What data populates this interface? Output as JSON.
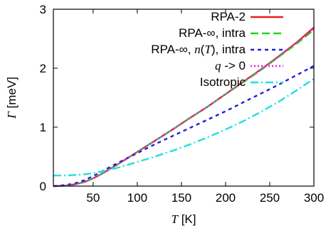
{
  "chart_data": {
    "type": "line",
    "title": "",
    "xlabel_var": "T",
    "xlabel_unit": "[K]",
    "ylabel_var": "Γ",
    "ylabel_unit": "[meV]",
    "xlim": [
      5,
      300
    ],
    "ylim": [
      0,
      3
    ],
    "xticks": [
      50,
      100,
      150,
      200,
      250,
      300
    ],
    "yticks": [
      0,
      1,
      2,
      3
    ],
    "legend_position": "top-right",
    "grid": false,
    "series": [
      {
        "name": "RPA-2",
        "legend_parts": [
          "RPA-2"
        ],
        "color": "#e8201c",
        "style": "solid",
        "x": [
          5,
          20,
          30,
          40,
          50,
          60,
          70,
          80,
          100,
          120,
          140,
          160,
          180,
          200,
          220,
          240,
          260,
          280,
          300
        ],
        "y": [
          0.0,
          0.01,
          0.03,
          0.07,
          0.13,
          0.21,
          0.3,
          0.39,
          0.58,
          0.77,
          0.96,
          1.16,
          1.35,
          1.56,
          1.77,
          1.98,
          2.2,
          2.43,
          2.69
        ]
      },
      {
        "name": "RPA-∞, intra",
        "legend_parts": [
          "RPA-∞, intra"
        ],
        "color": "#21d521",
        "style": "dash",
        "x": [
          5,
          20,
          30,
          40,
          50,
          60,
          70,
          80,
          100,
          120,
          140,
          160,
          180,
          200,
          220,
          240,
          260,
          280,
          300
        ],
        "y": [
          0.0,
          0.01,
          0.03,
          0.07,
          0.13,
          0.21,
          0.3,
          0.39,
          0.58,
          0.77,
          0.96,
          1.16,
          1.35,
          1.56,
          1.76,
          1.97,
          2.19,
          2.41,
          2.65
        ]
      },
      {
        "name": "RPA-∞, n(T), intra",
        "legend_parts": [
          "RPA-∞, ",
          "n",
          "(",
          "T",
          "), intra"
        ],
        "color": "#1f1fd6",
        "style": "shortdash",
        "x": [
          5,
          20,
          30,
          40,
          50,
          60,
          70,
          80,
          100,
          120,
          140,
          160,
          180,
          200,
          220,
          240,
          260,
          280,
          300
        ],
        "y": [
          0.0,
          0.02,
          0.05,
          0.1,
          0.17,
          0.25,
          0.33,
          0.41,
          0.56,
          0.71,
          0.85,
          0.99,
          1.13,
          1.27,
          1.42,
          1.57,
          1.72,
          1.88,
          2.04
        ]
      },
      {
        "name": "q -> 0",
        "legend_parts": [
          "q",
          " -> 0"
        ],
        "color": "#e61ee6",
        "style": "dot",
        "x": [
          5,
          20,
          30,
          40,
          50,
          60,
          70,
          80,
          100,
          120,
          140,
          160,
          180,
          200,
          220,
          240,
          260,
          280,
          300
        ],
        "y": [
          0.0,
          0.01,
          0.03,
          0.07,
          0.13,
          0.21,
          0.3,
          0.39,
          0.58,
          0.77,
          0.96,
          1.16,
          1.35,
          1.56,
          1.77,
          1.98,
          2.2,
          2.43,
          2.67
        ]
      },
      {
        "name": "Isotropic",
        "legend_parts": [
          "Isotropic"
        ],
        "color": "#1fe0e0",
        "style": "dashdot",
        "x": [
          5,
          20,
          30,
          40,
          50,
          60,
          70,
          80,
          100,
          120,
          140,
          160,
          180,
          200,
          220,
          240,
          260,
          280,
          300
        ],
        "y": [
          0.18,
          0.18,
          0.19,
          0.2,
          0.22,
          0.25,
          0.28,
          0.32,
          0.41,
          0.5,
          0.6,
          0.71,
          0.83,
          0.96,
          1.1,
          1.26,
          1.43,
          1.62,
          1.82
        ]
      }
    ]
  }
}
